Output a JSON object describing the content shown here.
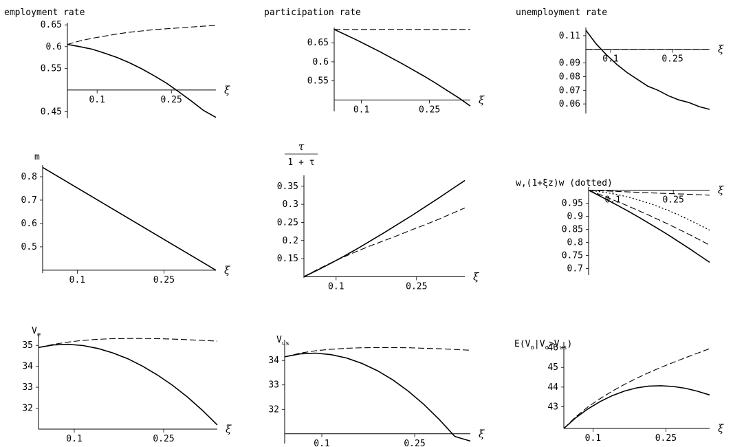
{
  "chart_data": [
    {
      "type": "line",
      "title": "employment rate",
      "xlabel": "ξ",
      "x_ticks": [
        0.1,
        0.25
      ],
      "y_ticks": [
        0.45,
        0.55,
        0.6,
        0.65
      ],
      "x_range": [
        0.04,
        0.34
      ],
      "y_range": [
        0.435,
        0.655
      ],
      "x_axis_crossing_y": 0.5,
      "y_axis_x": 0.04,
      "series": [
        {
          "style": "dashed",
          "x": [
            0.04,
            0.065,
            0.09,
            0.115,
            0.14,
            0.165,
            0.19,
            0.215,
            0.24,
            0.265,
            0.29,
            0.315,
            0.34
          ],
          "y": [
            0.605,
            0.613,
            0.619,
            0.624,
            0.629,
            0.633,
            0.636,
            0.639,
            0.641,
            0.643,
            0.645,
            0.647,
            0.649
          ]
        },
        {
          "style": "solid",
          "x": [
            0.04,
            0.065,
            0.09,
            0.115,
            0.14,
            0.165,
            0.19,
            0.215,
            0.24,
            0.265,
            0.29,
            0.315,
            0.34
          ],
          "y": [
            0.605,
            0.6,
            0.594,
            0.585,
            0.575,
            0.563,
            0.549,
            0.533,
            0.516,
            0.496,
            0.475,
            0.453,
            0.437
          ]
        }
      ]
    },
    {
      "type": "line",
      "title": "participation rate",
      "xlabel": "ξ",
      "x_ticks": [
        0.1,
        0.25
      ],
      "y_ticks": [
        0.55,
        0.6,
        0.65
      ],
      "x_range": [
        0.04,
        0.34
      ],
      "y_range": [
        0.47,
        0.69
      ],
      "x_axis_crossing_y": 0.5,
      "y_axis_x": 0.04,
      "series": [
        {
          "style": "dashed",
          "x": [
            0.04,
            0.34
          ],
          "y": [
            0.685,
            0.685
          ]
        },
        {
          "style": "solid",
          "x": [
            0.04,
            0.065,
            0.09,
            0.115,
            0.14,
            0.165,
            0.19,
            0.215,
            0.24,
            0.265,
            0.29,
            0.315,
            0.34
          ],
          "y": [
            0.685,
            0.671,
            0.657,
            0.642,
            0.627,
            0.611,
            0.595,
            0.578,
            0.561,
            0.543,
            0.524,
            0.505,
            0.484
          ]
        }
      ]
    },
    {
      "type": "line",
      "title": "unemployment rate",
      "xlabel": "ξ",
      "x_ticks": [
        0.1,
        0.25
      ],
      "y_ticks": [
        0.06,
        0.07,
        0.08,
        0.09,
        0.11
      ],
      "x_range": [
        0.04,
        0.34
      ],
      "y_range": [
        0.053,
        0.116
      ],
      "x_axis_crossing_y": 0.1,
      "y_axis_x": 0.04,
      "series": [
        {
          "style": "dashed",
          "x": [
            0.04,
            0.34
          ],
          "y": [
            0.1,
            0.1
          ]
        },
        {
          "style": "solid",
          "x": [
            0.04,
            0.065,
            0.09,
            0.115,
            0.14,
            0.165,
            0.19,
            0.215,
            0.24,
            0.265,
            0.29,
            0.315,
            0.34
          ],
          "y": [
            0.114,
            0.104,
            0.096,
            0.089,
            0.083,
            0.078,
            0.073,
            0.07,
            0.066,
            0.063,
            0.061,
            0.058,
            0.056
          ]
        }
      ]
    },
    {
      "type": "line",
      "title": "m",
      "xlabel": "ξ",
      "x_ticks": [
        0.1,
        0.25
      ],
      "y_ticks": [
        0.5,
        0.6,
        0.7,
        0.8
      ],
      "x_range": [
        0.04,
        0.34
      ],
      "y_range": [
        0.388,
        0.85
      ],
      "x_axis_crossing_y": 0.4,
      "y_axis_x": 0.04,
      "series": [
        {
          "style": "solid",
          "x": [
            0.04,
            0.34
          ],
          "y": [
            0.84,
            0.4
          ]
        },
        {
          "style": "dashed",
          "x": [
            0.04,
            0.34
          ],
          "y": [
            0.84,
            0.4
          ]
        }
      ]
    },
    {
      "type": "line",
      "title_fraction": {
        "numerator": "τ",
        "denominator": "1 + τ"
      },
      "xlabel": "ξ",
      "x_ticks": [
        0.1,
        0.25
      ],
      "y_ticks": [
        0.15,
        0.2,
        0.25,
        0.3,
        0.35
      ],
      "x_range": [
        0.04,
        0.34
      ],
      "y_range": [
        0.097,
        0.38
      ],
      "x_axis_crossing_y": 0.1,
      "y_axis_x": 0.04,
      "series": [
        {
          "style": "solid",
          "x": [
            0.04,
            0.065,
            0.09,
            0.115,
            0.14,
            0.165,
            0.19,
            0.215,
            0.24,
            0.265,
            0.29,
            0.315,
            0.34
          ],
          "y": [
            0.1,
            0.118,
            0.137,
            0.157,
            0.178,
            0.2,
            0.222,
            0.245,
            0.268,
            0.292,
            0.316,
            0.341,
            0.366
          ]
        },
        {
          "style": "dashed",
          "x": [
            0.04,
            0.065,
            0.09,
            0.115,
            0.14,
            0.165,
            0.19,
            0.215,
            0.24,
            0.265,
            0.29,
            0.315,
            0.34
          ],
          "y": [
            0.1,
            0.12,
            0.138,
            0.155,
            0.171,
            0.186,
            0.2,
            0.214,
            0.229,
            0.243,
            0.258,
            0.274,
            0.29
          ]
        }
      ]
    },
    {
      "type": "line",
      "title": "w,(1+ξz)w (dotted)",
      "xlabel": "ξ",
      "x_ticks": [
        0.1,
        0.25
      ],
      "y_ticks": [
        0.7,
        0.75,
        0.8,
        0.85,
        0.9,
        0.95
      ],
      "x_range": [
        0.04,
        0.34
      ],
      "y_range": [
        0.675,
        1.012
      ],
      "x_axis_crossing_y": 1.0,
      "y_axis_x": 0.04,
      "series": [
        {
          "style": "dashed",
          "x": [
            0.04,
            0.1,
            0.16,
            0.22,
            0.28,
            0.34
          ],
          "y": [
            1.0,
            0.996,
            0.992,
            0.988,
            0.985,
            0.981
          ]
        },
        {
          "style": "dotted",
          "x": [
            0.04,
            0.065,
            0.09,
            0.115,
            0.14,
            0.165,
            0.19,
            0.215,
            0.24,
            0.265,
            0.29,
            0.315,
            0.34
          ],
          "y": [
            1.0,
            0.995,
            0.989,
            0.982,
            0.973,
            0.962,
            0.95,
            0.936,
            0.921,
            0.904,
            0.886,
            0.867,
            0.847
          ]
        },
        {
          "style": "dashed",
          "x": [
            0.04,
            0.065,
            0.09,
            0.115,
            0.14,
            0.165,
            0.19,
            0.215,
            0.24,
            0.265,
            0.29,
            0.315,
            0.34
          ],
          "y": [
            1.0,
            0.985,
            0.97,
            0.954,
            0.938,
            0.921,
            0.904,
            0.886,
            0.868,
            0.849,
            0.83,
            0.81,
            0.79
          ]
        },
        {
          "style": "solid",
          "x": [
            0.04,
            0.065,
            0.09,
            0.115,
            0.14,
            0.165,
            0.19,
            0.215,
            0.24,
            0.265,
            0.29,
            0.315,
            0.34
          ],
          "y": [
            1.0,
            0.98,
            0.96,
            0.939,
            0.918,
            0.896,
            0.873,
            0.85,
            0.826,
            0.801,
            0.776,
            0.75,
            0.724
          ]
        }
      ]
    },
    {
      "type": "line",
      "title": "V",
      "title_sub": "e",
      "xlabel": "ξ",
      "x_ticks": [
        0.1,
        0.25
      ],
      "y_ticks": [
        32,
        33,
        34,
        35
      ],
      "x_range": [
        0.04,
        0.34
      ],
      "y_range": [
        31.0,
        35.5
      ],
      "x_axis_crossing_y": 31.0,
      "y_axis_x": 0.04,
      "series": [
        {
          "style": "dashed",
          "x": [
            0.04,
            0.065,
            0.09,
            0.115,
            0.14,
            0.165,
            0.19,
            0.215,
            0.24,
            0.265,
            0.29,
            0.315,
            0.34
          ],
          "y": [
            34.9,
            35.05,
            35.16,
            35.24,
            35.29,
            35.32,
            35.33,
            35.33,
            35.32,
            35.3,
            35.27,
            35.24,
            35.2
          ]
        },
        {
          "style": "solid",
          "x": [
            0.04,
            0.065,
            0.09,
            0.115,
            0.14,
            0.165,
            0.19,
            0.215,
            0.24,
            0.265,
            0.29,
            0.315,
            0.34
          ],
          "y": [
            34.9,
            35.02,
            35.05,
            34.99,
            34.85,
            34.64,
            34.36,
            34.0,
            33.58,
            33.09,
            32.53,
            31.9,
            31.2
          ]
        }
      ]
    },
    {
      "type": "line",
      "title": "V",
      "title_sub": "us",
      "xlabel": "ξ",
      "x_ticks": [
        0.1,
        0.25
      ],
      "y_ticks": [
        32,
        33,
        34
      ],
      "x_range": [
        0.04,
        0.34
      ],
      "y_range": [
        30.6,
        34.85
      ],
      "x_axis_crossing_y": 31.0,
      "y_axis_x": 0.04,
      "series": [
        {
          "style": "dashed",
          "x": [
            0.04,
            0.065,
            0.09,
            0.115,
            0.14,
            0.165,
            0.19,
            0.215,
            0.24,
            0.265,
            0.29,
            0.315,
            0.34
          ],
          "y": [
            34.15,
            34.3,
            34.4,
            34.46,
            34.5,
            34.52,
            34.53,
            34.53,
            34.52,
            34.5,
            34.48,
            34.45,
            34.42
          ]
        },
        {
          "style": "solid",
          "x": [
            0.04,
            0.065,
            0.09,
            0.115,
            0.14,
            0.165,
            0.19,
            0.215,
            0.24,
            0.265,
            0.29,
            0.315,
            0.34
          ],
          "y": [
            34.15,
            34.27,
            34.3,
            34.24,
            34.1,
            33.88,
            33.58,
            33.2,
            32.74,
            32.2,
            31.58,
            30.89,
            30.7
          ]
        }
      ]
    },
    {
      "type": "line",
      "title": "E(V",
      "title_sub": "o",
      "title_mid": "|V",
      "title_sub2": "o",
      "title_mid2": ">V",
      "title_sub3": "us",
      "title_end": ")",
      "xlabel": "ξ",
      "x_ticks": [
        0.1,
        0.25
      ],
      "y_ticks": [
        43,
        44,
        45,
        46
      ],
      "x_range": [
        0.04,
        0.34
      ],
      "y_range": [
        41.9,
        46.3
      ],
      "x_axis_crossing_y": 41.9,
      "y_axis_x": 0.04,
      "series": [
        {
          "style": "dashed",
          "x": [
            0.04,
            0.065,
            0.09,
            0.115,
            0.14,
            0.165,
            0.19,
            0.215,
            0.24,
            0.265,
            0.29,
            0.315,
            0.34
          ],
          "y": [
            41.9,
            42.5,
            43.0,
            43.42,
            43.8,
            44.14,
            44.45,
            44.74,
            45.0,
            45.25,
            45.49,
            45.72,
            45.95
          ]
        },
        {
          "style": "solid",
          "x": [
            0.04,
            0.065,
            0.09,
            0.115,
            0.14,
            0.165,
            0.19,
            0.215,
            0.24,
            0.265,
            0.29,
            0.315,
            0.34
          ],
          "y": [
            41.9,
            42.45,
            42.9,
            43.27,
            43.57,
            43.8,
            43.96,
            44.05,
            44.07,
            44.03,
            43.94,
            43.79,
            43.6
          ]
        }
      ]
    }
  ]
}
